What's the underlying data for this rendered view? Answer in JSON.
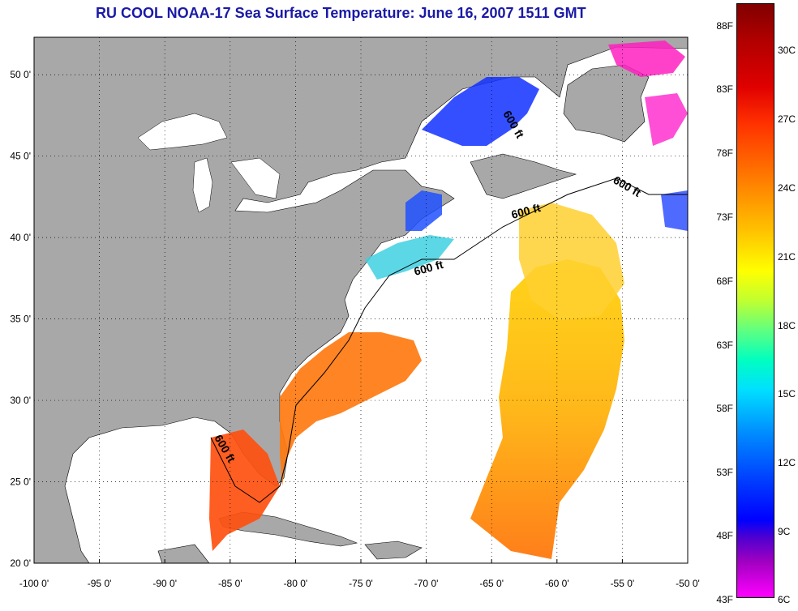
{
  "title": "RU COOL  NOAA-17  Sea Surface Temperature:  June 16, 2007 1511 GMT",
  "map": {
    "lon_ticks": [
      "-100 0'",
      "-95 0'",
      "-90 0'",
      "-85 0'",
      "-80 0'",
      "-75 0'",
      "-70 0'",
      "-65 0'",
      "-60 0'",
      "-55 0'",
      "-50 0'"
    ],
    "lat_ticks": [
      "50 0'",
      "45 0'",
      "40 0'",
      "35 0'",
      "30 0'",
      "25 0'",
      "20 0'"
    ],
    "contour_labels": [
      "600 ft",
      "600 ft",
      "600 ft",
      "600 ft",
      "600 ft"
    ],
    "colors": {
      "land": "#a8a8a8",
      "water_nodata": "#ffffff",
      "grid": "#000000"
    }
  },
  "colorbar": {
    "fahrenheit": [
      "88F",
      "83F",
      "78F",
      "73F",
      "68F",
      "63F",
      "58F",
      "53F",
      "48F",
      "43F"
    ],
    "celsius": [
      "30C",
      "27C",
      "24C",
      "21C",
      "18C",
      "15C",
      "12C",
      "9C",
      "6C"
    ]
  }
}
